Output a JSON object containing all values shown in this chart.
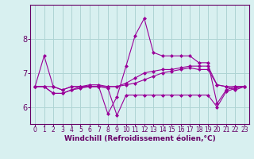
{
  "xlabel": "Windchill (Refroidissement éolien,°C)",
  "x": [
    0,
    1,
    2,
    3,
    4,
    5,
    6,
    7,
    8,
    9,
    10,
    11,
    12,
    13,
    14,
    15,
    16,
    17,
    18,
    19,
    20,
    21,
    22,
    23
  ],
  "series": [
    [
      6.6,
      7.5,
      6.6,
      6.5,
      6.6,
      6.6,
      6.6,
      6.6,
      5.8,
      6.3,
      7.2,
      8.1,
      8.6,
      7.6,
      7.5,
      7.5,
      7.5,
      7.5,
      7.3,
      7.3,
      6.1,
      6.5,
      6.6,
      6.6
    ],
    [
      6.6,
      6.6,
      6.4,
      6.4,
      6.5,
      6.55,
      6.6,
      6.6,
      6.55,
      5.75,
      6.35,
      6.35,
      6.35,
      6.35,
      6.35,
      6.35,
      6.35,
      6.35,
      6.35,
      6.35,
      6.0,
      6.45,
      6.55,
      6.6
    ],
    [
      6.6,
      6.6,
      6.6,
      6.5,
      6.6,
      6.6,
      6.6,
      6.6,
      6.6,
      6.6,
      6.65,
      6.7,
      6.8,
      6.9,
      7.0,
      7.05,
      7.1,
      7.15,
      7.1,
      7.1,
      6.65,
      6.6,
      6.6,
      6.6
    ],
    [
      6.6,
      6.6,
      6.4,
      6.4,
      6.5,
      6.6,
      6.65,
      6.65,
      6.6,
      6.6,
      6.7,
      6.85,
      7.0,
      7.05,
      7.1,
      7.1,
      7.15,
      7.2,
      7.2,
      7.2,
      6.65,
      6.6,
      6.5,
      6.6
    ]
  ],
  "line_color": "#990099",
  "marker": "D",
  "marker_size": 2.0,
  "bg_color": "#d8f0f0",
  "grid_color": "#aed4d4",
  "axis_color": "#660066",
  "tick_color": "#660066",
  "ylim": [
    5.5,
    9.0
  ],
  "yticks": [
    6,
    7,
    8
  ],
  "xlim": [
    -0.5,
    23.5
  ],
  "xticks": [
    0,
    1,
    2,
    3,
    4,
    5,
    6,
    7,
    8,
    9,
    10,
    11,
    12,
    13,
    14,
    15,
    16,
    17,
    18,
    19,
    20,
    21,
    22,
    23
  ],
  "xlabel_fontsize": 6.5,
  "tick_fontsize_x": 5.5,
  "tick_fontsize_y": 7.0
}
